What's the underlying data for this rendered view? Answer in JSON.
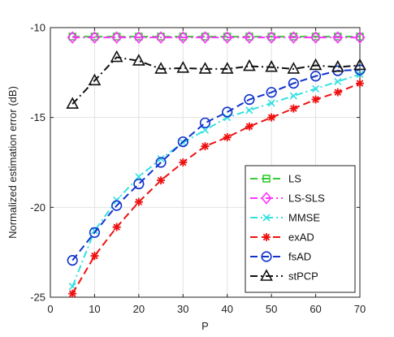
{
  "chart_data": {
    "type": "line",
    "title": "",
    "xlabel": "P",
    "ylabel": "Normalized estimation error (dB)",
    "xlim": [
      0,
      70
    ],
    "ylim": [
      -25,
      -10
    ],
    "xticks": [
      0,
      10,
      20,
      30,
      40,
      50,
      60,
      70
    ],
    "yticks": [
      -25,
      -20,
      -15,
      -10
    ],
    "grid": true,
    "legend_position": "bottom-right",
    "x": [
      5,
      10,
      15,
      20,
      25,
      30,
      35,
      40,
      45,
      50,
      55,
      60,
      65,
      70
    ],
    "series": [
      {
        "name": "LS",
        "color": "#33cc33",
        "dash": "dash",
        "marker": "square",
        "values": [
          -10.5,
          -10.5,
          -10.5,
          -10.5,
          -10.5,
          -10.5,
          -10.5,
          -10.5,
          -10.5,
          -10.5,
          -10.5,
          -10.5,
          -10.5,
          -10.5
        ]
      },
      {
        "name": "LS-SLS",
        "color": "#ff33ff",
        "dash": "dashdot",
        "marker": "diamond",
        "values": [
          -10.55,
          -10.55,
          -10.55,
          -10.55,
          -10.55,
          -10.55,
          -10.55,
          -10.55,
          -10.55,
          -10.55,
          -10.55,
          -10.55,
          -10.55,
          -10.55
        ]
      },
      {
        "name": "MMSE",
        "color": "#33e0e0",
        "dash": "dashdot",
        "marker": "x",
        "values": [
          -24.4,
          -21.3,
          -19.6,
          -18.3,
          -17.3,
          -16.4,
          -15.7,
          -15.0,
          -14.6,
          -14.2,
          -13.8,
          -13.4,
          -13.0,
          -12.6
        ]
      },
      {
        "name": "exAD",
        "color": "#ee1111",
        "dash": "dash",
        "marker": "asterisk",
        "values": [
          -24.8,
          -22.7,
          -21.1,
          -19.7,
          -18.5,
          -17.5,
          -16.6,
          -16.1,
          -15.5,
          -15.0,
          -14.5,
          -14.0,
          -13.6,
          -13.1
        ]
      },
      {
        "name": "fsAD",
        "color": "#1133cc",
        "dash": "dash",
        "marker": "circle",
        "values": [
          -22.95,
          -21.4,
          -19.9,
          -18.7,
          -17.5,
          -16.35,
          -15.3,
          -14.7,
          -14.0,
          -13.6,
          -13.1,
          -12.7,
          -12.4,
          -12.35
        ]
      },
      {
        "name": "stPCP",
        "color": "#111111",
        "dash": "dashdot",
        "marker": "triangle",
        "values": [
          -14.25,
          -12.95,
          -11.65,
          -11.85,
          -12.3,
          -12.25,
          -12.3,
          -12.3,
          -12.15,
          -12.2,
          -12.3,
          -12.1,
          -12.2,
          -12.1
        ]
      }
    ]
  }
}
